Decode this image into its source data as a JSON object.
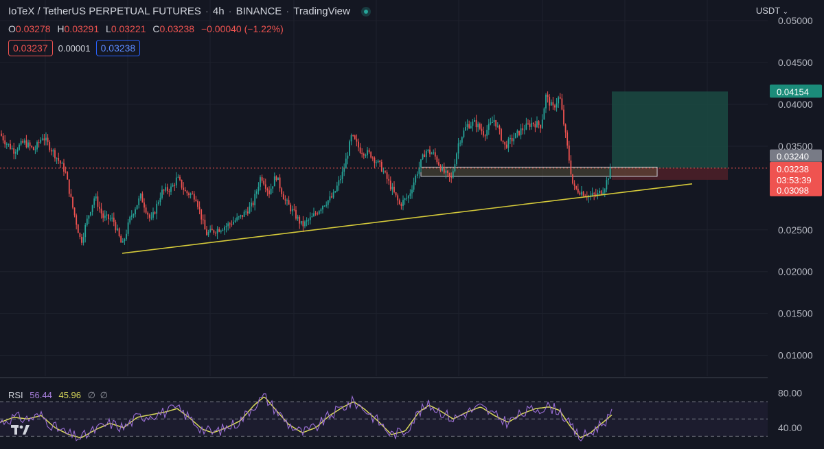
{
  "header": {
    "symbol": "IoTeX / TetherUS PERPETUAL FUTURES",
    "interval": "4h",
    "exchange": "BINANCE",
    "platform": "TradingView",
    "status_color": "#26a69a"
  },
  "ohlc": {
    "o_label": "O",
    "o": "0.03278",
    "h_label": "H",
    "h": "0.03291",
    "l_label": "L",
    "l": "0.03221",
    "c_label": "C",
    "c": "0.03238",
    "change": "−0.00040 (−1.22%)"
  },
  "quotes": {
    "sell": "0.03237",
    "spread": "0.00001",
    "buy": "0.03238"
  },
  "currency": "USDT",
  "rsi": {
    "label": "RSI",
    "value": "56.44",
    "ma": "45.96",
    "na1": "∅",
    "na2": "∅"
  },
  "colors": {
    "up": "#26a69a",
    "down": "#ef5350",
    "trendline": "#d4c93a",
    "rsi_line": "#9b6fd6",
    "rsi_ma": "#d9d95a",
    "target_zone": "#1a4a42",
    "stop_zone": "#4a1f28"
  },
  "chart_data": {
    "type": "candlestick",
    "price_axis": {
      "ticks": [
        "0.05000",
        "0.04500",
        "0.04000",
        "0.03500",
        "0.02500",
        "0.02000",
        "0.01500",
        "0.01000"
      ],
      "range": [
        0.0075,
        0.051
      ]
    },
    "price_path": [
      [
        0,
        0.0365
      ],
      [
        8,
        0.0355
      ],
      [
        20,
        0.0345
      ],
      [
        35,
        0.0355
      ],
      [
        50,
        0.0345
      ],
      [
        62,
        0.0362
      ],
      [
        80,
        0.034
      ],
      [
        95,
        0.032
      ],
      [
        105,
        0.028
      ],
      [
        118,
        0.0235
      ],
      [
        128,
        0.0265
      ],
      [
        138,
        0.029
      ],
      [
        150,
        0.0265
      ],
      [
        165,
        0.0262
      ],
      [
        178,
        0.023
      ],
      [
        190,
        0.0265
      ],
      [
        205,
        0.029
      ],
      [
        220,
        0.026
      ],
      [
        235,
        0.0295
      ],
      [
        250,
        0.03
      ],
      [
        258,
        0.0312
      ],
      [
        270,
        0.0295
      ],
      [
        285,
        0.029
      ],
      [
        300,
        0.0245
      ],
      [
        315,
        0.025
      ],
      [
        330,
        0.0255
      ],
      [
        350,
        0.0265
      ],
      [
        368,
        0.028
      ],
      [
        380,
        0.0315
      ],
      [
        392,
        0.0295
      ],
      [
        402,
        0.0315
      ],
      [
        415,
        0.0285
      ],
      [
        428,
        0.027
      ],
      [
        440,
        0.0255
      ],
      [
        455,
        0.0265
      ],
      [
        470,
        0.028
      ],
      [
        485,
        0.029
      ],
      [
        500,
        0.032
      ],
      [
        512,
        0.0362
      ],
      [
        525,
        0.0345
      ],
      [
        540,
        0.034
      ],
      [
        555,
        0.0325
      ],
      [
        570,
        0.03
      ],
      [
        582,
        0.028
      ],
      [
        595,
        0.029
      ],
      [
        608,
        0.032
      ],
      [
        620,
        0.0345
      ],
      [
        632,
        0.034
      ],
      [
        645,
        0.032
      ],
      [
        657,
        0.031
      ],
      [
        668,
        0.0355
      ],
      [
        680,
        0.0375
      ],
      [
        692,
        0.0378
      ],
      [
        705,
        0.0365
      ],
      [
        720,
        0.0382
      ],
      [
        735,
        0.035
      ],
      [
        748,
        0.036
      ],
      [
        760,
        0.037
      ],
      [
        775,
        0.0378
      ],
      [
        788,
        0.0375
      ],
      [
        795,
        0.041
      ],
      [
        805,
        0.0395
      ],
      [
        815,
        0.041
      ],
      [
        825,
        0.0355
      ],
      [
        835,
        0.03
      ],
      [
        848,
        0.0295
      ],
      [
        858,
        0.029
      ],
      [
        870,
        0.0292
      ],
      [
        880,
        0.03
      ],
      [
        890,
        0.0324
      ]
    ],
    "trendline": {
      "from": [
        178,
        0.0222
      ],
      "to": [
        1008,
        0.0305
      ]
    },
    "zone": {
      "x1": 613,
      "x2": 957,
      "top": 0.0325,
      "bottom": 0.0314
    },
    "position": {
      "x1": 891,
      "x2": 1060,
      "entry": 0.0324,
      "target": 0.04154,
      "stop": 0.03098
    },
    "current_price": 0.03238,
    "price_labels": {
      "target": "0.04154",
      "entry": "0.03240",
      "current": "0.03238",
      "countdown": "03:53:39",
      "stop": "0.03098"
    },
    "rsi_panel": {
      "ticks": [
        "80.00",
        "40.00"
      ],
      "range": [
        20,
        90
      ],
      "upper": 70,
      "middle": 50,
      "lower": 30,
      "path": [
        [
          0,
          46
        ],
        [
          20,
          52
        ],
        [
          40,
          50
        ],
        [
          60,
          54
        ],
        [
          80,
          40
        ],
        [
          100,
          32
        ],
        [
          118,
          28
        ],
        [
          140,
          38
        ],
        [
          160,
          45
        ],
        [
          180,
          40
        ],
        [
          200,
          52
        ],
        [
          220,
          55
        ],
        [
          240,
          58
        ],
        [
          258,
          62
        ],
        [
          275,
          52
        ],
        [
          295,
          38
        ],
        [
          310,
          34
        ],
        [
          330,
          40
        ],
        [
          350,
          48
        ],
        [
          370,
          66
        ],
        [
          385,
          76
        ],
        [
          400,
          62
        ],
        [
          420,
          44
        ],
        [
          440,
          34
        ],
        [
          460,
          40
        ],
        [
          480,
          54
        ],
        [
          500,
          64
        ],
        [
          515,
          70
        ],
        [
          530,
          62
        ],
        [
          550,
          48
        ],
        [
          570,
          32
        ],
        [
          590,
          36
        ],
        [
          610,
          58
        ],
        [
          625,
          66
        ],
        [
          640,
          60
        ],
        [
          660,
          50
        ],
        [
          680,
          58
        ],
        [
          700,
          64
        ],
        [
          720,
          54
        ],
        [
          740,
          46
        ],
        [
          760,
          56
        ],
        [
          780,
          62
        ],
        [
          800,
          64
        ],
        [
          815,
          60
        ],
        [
          830,
          42
        ],
        [
          845,
          28
        ],
        [
          860,
          34
        ],
        [
          875,
          44
        ],
        [
          893,
          56
        ]
      ]
    }
  }
}
